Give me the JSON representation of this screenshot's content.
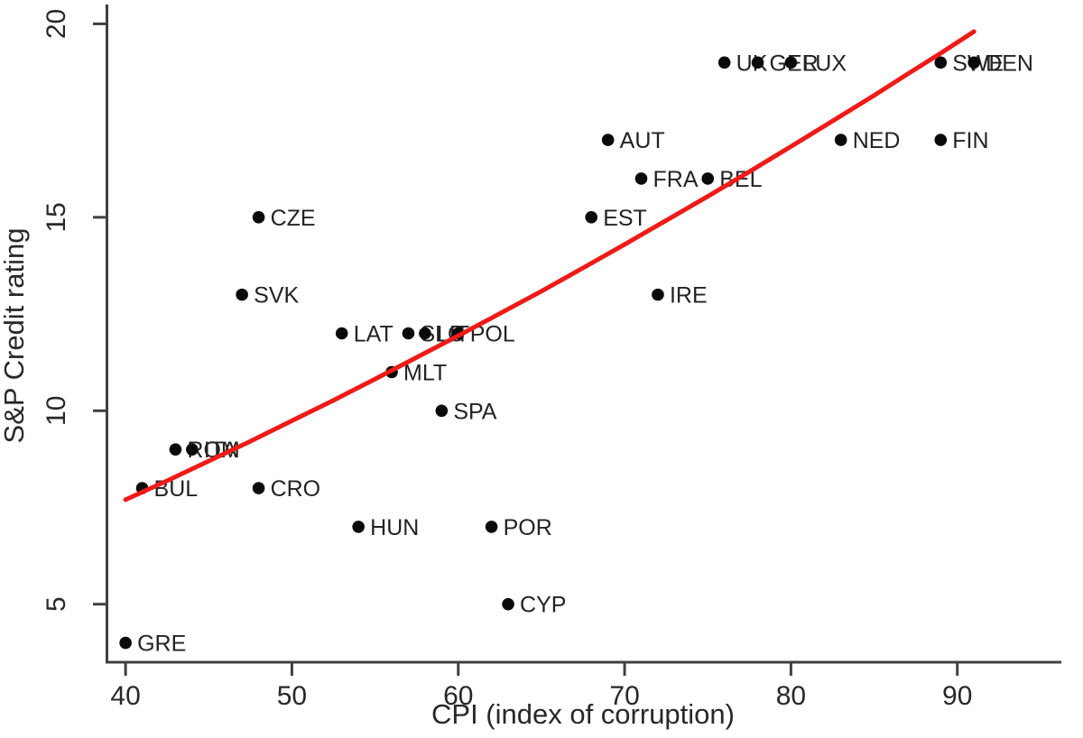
{
  "chart_data": {
    "type": "scatter",
    "title": "",
    "xlabel": "CPI (index of corruption)",
    "ylabel": "S&P Credit rating",
    "xlim": [
      38.8,
      96.2
    ],
    "ylim": [
      3.5,
      20.5
    ],
    "x_ticks": [
      40,
      50,
      60,
      70,
      80,
      90
    ],
    "y_ticks": [
      5,
      10,
      15,
      20
    ],
    "grid": false,
    "legend": "none",
    "marker_color": "#0a0a0a",
    "points": [
      {
        "label": "GRE",
        "x": 40,
        "y": 4
      },
      {
        "label": "BUL",
        "x": 41,
        "y": 8
      },
      {
        "label": "ROM",
        "x": 43,
        "y": 9
      },
      {
        "label": "ITA",
        "x": 44,
        "y": 9
      },
      {
        "label": "SVK",
        "x": 47,
        "y": 13
      },
      {
        "label": "CRO",
        "x": 48,
        "y": 8
      },
      {
        "label": "CZE",
        "x": 48,
        "y": 15
      },
      {
        "label": "LAT",
        "x": 53,
        "y": 12
      },
      {
        "label": "HUN",
        "x": 54,
        "y": 7
      },
      {
        "label": "MLT",
        "x": 56,
        "y": 11
      },
      {
        "label": "SLO",
        "x": 57,
        "y": 12
      },
      {
        "label": "LIT",
        "x": 58,
        "y": 12
      },
      {
        "label": "SPA",
        "x": 59,
        "y": 10
      },
      {
        "label": "POL",
        "x": 60,
        "y": 12
      },
      {
        "label": "POR",
        "x": 62,
        "y": 7
      },
      {
        "label": "CYP",
        "x": 63,
        "y": 5
      },
      {
        "label": "EST",
        "x": 68,
        "y": 15
      },
      {
        "label": "AUT",
        "x": 69,
        "y": 17
      },
      {
        "label": "FRA",
        "x": 71,
        "y": 16
      },
      {
        "label": "IRE",
        "x": 72,
        "y": 13
      },
      {
        "label": "BEL",
        "x": 75,
        "y": 16
      },
      {
        "label": "UK",
        "x": 76,
        "y": 19
      },
      {
        "label": "GER",
        "x": 78,
        "y": 19
      },
      {
        "label": "LUX",
        "x": 80,
        "y": 19
      },
      {
        "label": "NED",
        "x": 83,
        "y": 17
      },
      {
        "label": "SWE",
        "x": 89,
        "y": 19
      },
      {
        "label": "FIN",
        "x": 89,
        "y": 17
      },
      {
        "label": "DEN",
        "x": 91,
        "y": 19
      }
    ],
    "fit_line": {
      "color": "#ee1b18",
      "points": [
        [
          40,
          7.7
        ],
        [
          42.5,
          8.19
        ],
        [
          45,
          8.7
        ],
        [
          47.5,
          9.21
        ],
        [
          50,
          9.74
        ],
        [
          52.5,
          10.27
        ],
        [
          55,
          10.82
        ],
        [
          57.5,
          11.38
        ],
        [
          60,
          11.94
        ],
        [
          62.5,
          12.51
        ],
        [
          65,
          13.09
        ],
        [
          67.5,
          13.69
        ],
        [
          70,
          14.3
        ],
        [
          72.5,
          14.92
        ],
        [
          75,
          15.54
        ],
        [
          77.5,
          16.18
        ],
        [
          80,
          16.83
        ],
        [
          82.5,
          17.49
        ],
        [
          85,
          18.15
        ],
        [
          87,
          18.7
        ],
        [
          89,
          19.24
        ],
        [
          91,
          19.8
        ]
      ]
    }
  }
}
